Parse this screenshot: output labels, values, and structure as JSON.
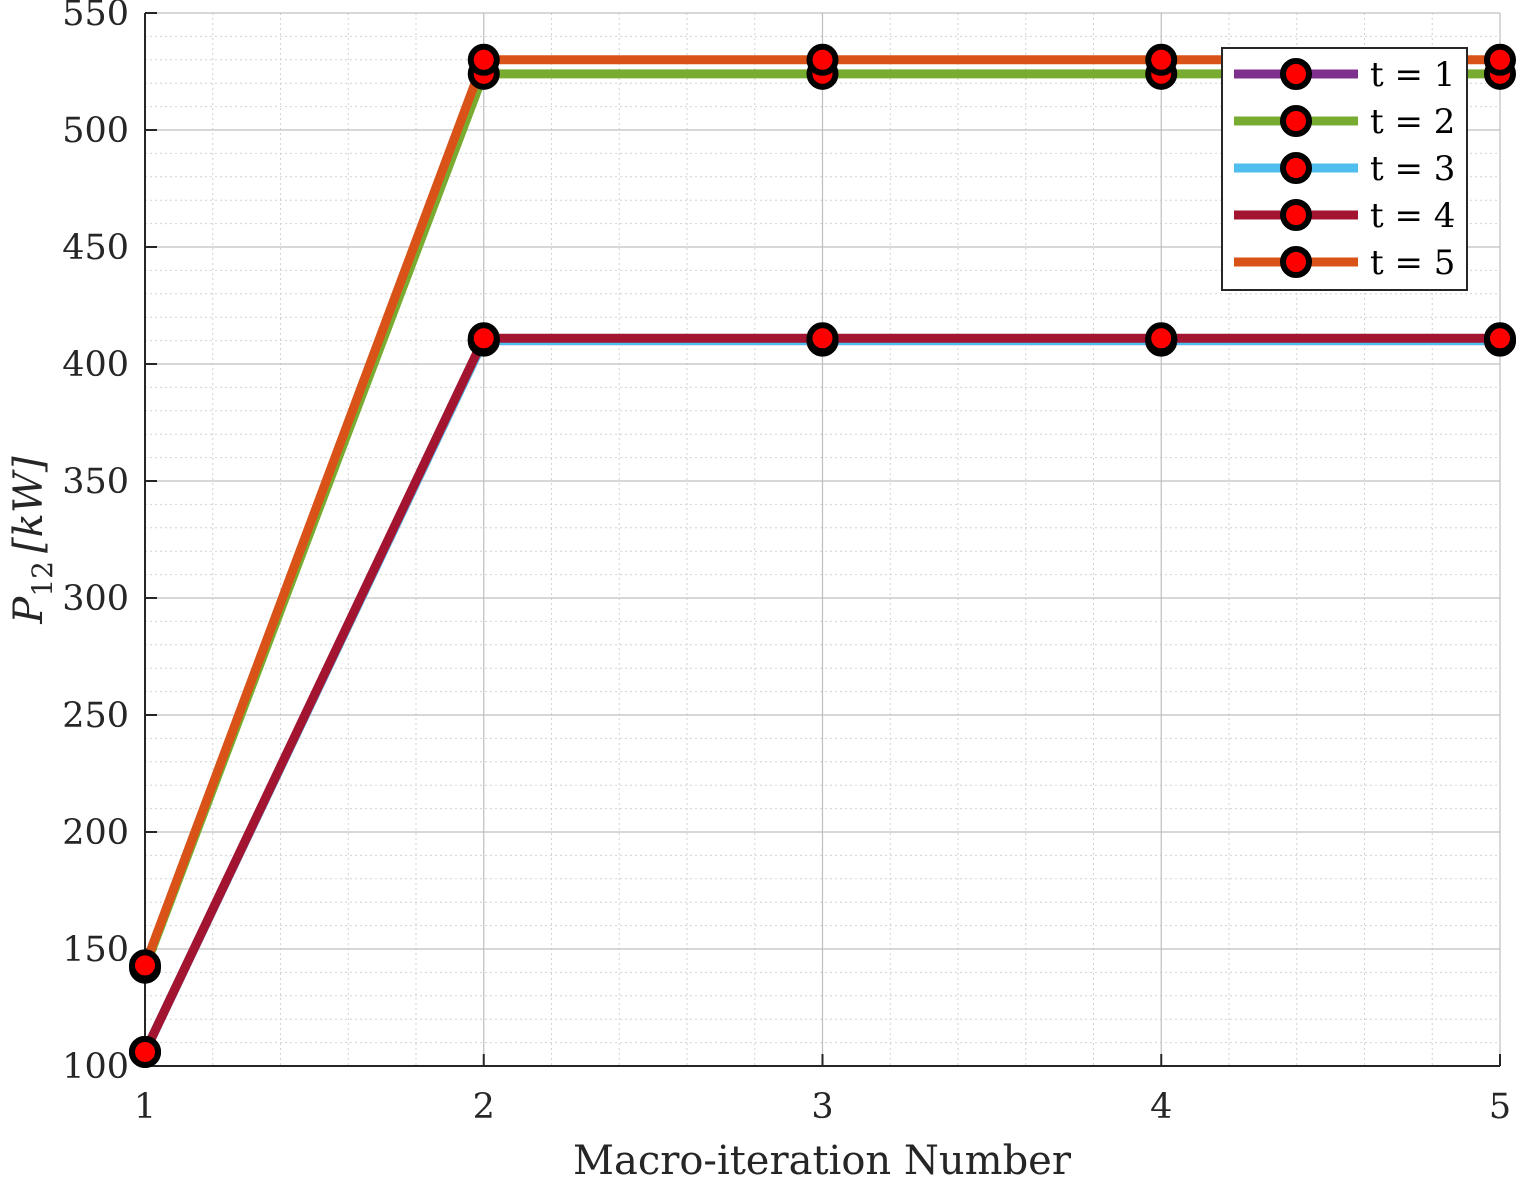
{
  "chart_data": {
    "type": "line",
    "xlabel": "Macro-iteration Number",
    "ylabel": {
      "symbol": "P",
      "subscript": "12",
      "unit": "[kW]"
    },
    "x": [
      1,
      2,
      3,
      4,
      5
    ],
    "xticks": [
      "1",
      "2",
      "3",
      "4",
      "5"
    ],
    "xlim": [
      1,
      5
    ],
    "yticks": [
      "100",
      "150",
      "200",
      "250",
      "300",
      "350",
      "400",
      "450",
      "500",
      "550"
    ],
    "ylim": [
      100,
      550
    ],
    "grid": true,
    "minor_grid": true,
    "legend_position": "top-right",
    "series": [
      {
        "name": "t = 1",
        "color": "#7E2F8E",
        "values": [
          106,
          410,
          410,
          410,
          410
        ]
      },
      {
        "name": "t = 2",
        "color": "#77AC30",
        "values": [
          142,
          524,
          524,
          524,
          524
        ]
      },
      {
        "name": "t = 3",
        "color": "#4DBEEE",
        "values": [
          106,
          410,
          410,
          410,
          410
        ]
      },
      {
        "name": "t = 4",
        "color": "#A2142F",
        "values": [
          106,
          411,
          411,
          411,
          411
        ]
      },
      {
        "name": "t = 5",
        "color": "#D95319",
        "values": [
          143,
          530,
          530,
          530,
          530
        ]
      }
    ],
    "marker": {
      "edge_color": "#000000",
      "fill_color": "#FF0000"
    }
  }
}
